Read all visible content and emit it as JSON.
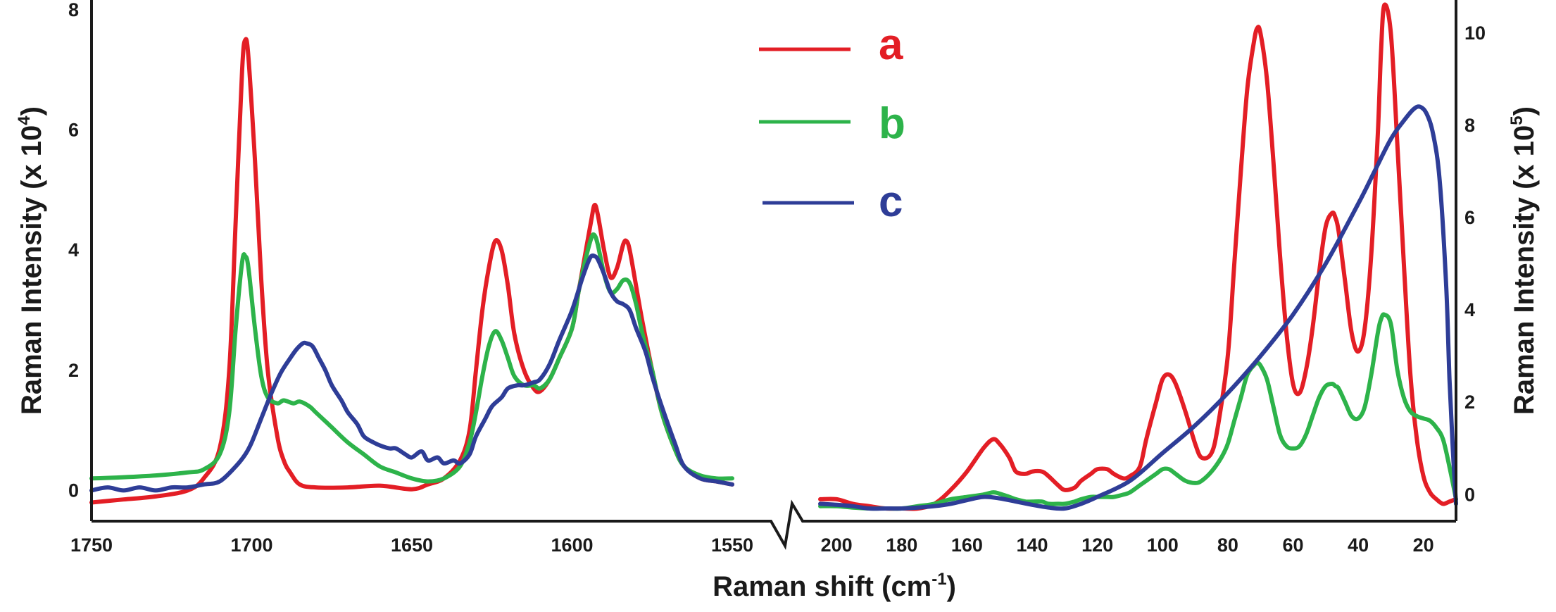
{
  "chart_data": {
    "type": "line",
    "xlabel": "Raman shift (cm-1)",
    "xlabel_main": "Raman shift (cm",
    "xlabel_sup": "-1",
    "xlabel_close": ")",
    "panels": [
      {
        "id": "left",
        "xlim": [
          1750,
          1550
        ],
        "ylim": [
          -0.3,
          8
        ],
        "xticks": [
          1750,
          1700,
          1650,
          1600,
          1550
        ],
        "yticks": [
          0,
          2,
          4,
          6,
          8
        ],
        "ylabel": "Raman Intensity (x 10^4)",
        "ylabel_main": "Raman Intensity (x 10",
        "ylabel_sup": "4",
        "ylabel_close": ")",
        "series": [
          {
            "name": "a",
            "color": "#e31e25",
            "x": [
              1750,
              1740,
              1730,
              1720,
              1715,
              1710,
              1707,
              1705,
              1703,
              1702,
              1701,
              1699,
              1697,
              1695,
              1692,
              1690,
              1688,
              1685,
              1680,
              1670,
              1660,
              1650,
              1645,
              1640,
              1635,
              1632,
              1630,
              1628,
              1626,
              1624,
              1622,
              1620,
              1618,
              1615,
              1612,
              1610,
              1607,
              1604,
              1600,
              1598,
              1596,
              1594,
              1593,
              1592,
              1590,
              1588,
              1586,
              1584,
              1583,
              1582,
              1580,
              1578,
              1575,
              1572,
              1568,
              1565,
              1560,
              1555,
              1550
            ],
            "y": [
              -0.2,
              -0.15,
              -0.1,
              0.0,
              0.2,
              0.7,
              2.0,
              4.5,
              7.0,
              7.5,
              7.2,
              5.5,
              3.5,
              2.0,
              0.9,
              0.5,
              0.3,
              0.1,
              0.05,
              0.05,
              0.08,
              0.02,
              0.1,
              0.2,
              0.5,
              1.0,
              2.0,
              3.0,
              3.7,
              4.15,
              4.0,
              3.4,
              2.6,
              2.0,
              1.7,
              1.65,
              1.85,
              2.2,
              2.7,
              3.3,
              3.9,
              4.5,
              4.75,
              4.6,
              4.0,
              3.55,
              3.7,
              4.1,
              4.15,
              4.0,
              3.4,
              2.8,
              2.0,
              1.3,
              0.7,
              0.4,
              0.2,
              0.15,
              0.1
            ]
          },
          {
            "name": "b",
            "color": "#2db34a",
            "x": [
              1750,
              1740,
              1730,
              1720,
              1715,
              1710,
              1707,
              1705,
              1703,
              1702,
              1701,
              1699,
              1697,
              1695,
              1692,
              1690,
              1687,
              1685,
              1682,
              1680,
              1675,
              1670,
              1665,
              1660,
              1655,
              1650,
              1645,
              1640,
              1635,
              1632,
              1630,
              1628,
              1626,
              1624,
              1622,
              1620,
              1618,
              1615,
              1612,
              1610,
              1607,
              1604,
              1600,
              1598,
              1596,
              1594,
              1593,
              1592,
              1590,
              1588,
              1586,
              1584,
              1582,
              1580,
              1578,
              1575,
              1572,
              1568,
              1565,
              1560,
              1555,
              1550
            ],
            "y": [
              0.2,
              0.22,
              0.25,
              0.3,
              0.35,
              0.6,
              1.3,
              2.7,
              3.8,
              3.9,
              3.7,
              2.7,
              1.9,
              1.55,
              1.45,
              1.5,
              1.45,
              1.48,
              1.4,
              1.3,
              1.05,
              0.8,
              0.6,
              0.4,
              0.3,
              0.2,
              0.15,
              0.2,
              0.4,
              0.8,
              1.3,
              1.9,
              2.4,
              2.65,
              2.5,
              2.2,
              1.9,
              1.75,
              1.75,
              1.7,
              1.85,
              2.2,
              2.7,
              3.3,
              3.8,
              4.2,
              4.25,
              4.1,
              3.6,
              3.3,
              3.35,
              3.5,
              3.45,
              3.1,
              2.6,
              2.0,
              1.3,
              0.7,
              0.4,
              0.25,
              0.2,
              0.2
            ]
          },
          {
            "name": "c",
            "color": "#2e3d97",
            "x": [
              1750,
              1745,
              1740,
              1735,
              1730,
              1725,
              1720,
              1715,
              1710,
              1705,
              1702,
              1700,
              1697,
              1694,
              1691,
              1688,
              1686,
              1684,
              1683,
              1681,
              1679,
              1677,
              1675,
              1672,
              1670,
              1667,
              1665,
              1662,
              1660,
              1657,
              1655,
              1652,
              1650,
              1647,
              1645,
              1642,
              1640,
              1637,
              1635,
              1632,
              1630,
              1627,
              1625,
              1622,
              1620,
              1617,
              1615,
              1612,
              1610,
              1607,
              1604,
              1600,
              1597,
              1595,
              1594,
              1593,
              1592,
              1590,
              1588,
              1586,
              1584,
              1582,
              1580,
              1577,
              1575,
              1572,
              1568,
              1565,
              1560,
              1555,
              1550
            ],
            "y": [
              0.0,
              0.05,
              0.0,
              0.05,
              0.0,
              0.05,
              0.05,
              0.1,
              0.15,
              0.4,
              0.6,
              0.8,
              1.2,
              1.6,
              1.95,
              2.2,
              2.35,
              2.45,
              2.45,
              2.4,
              2.2,
              2.0,
              1.75,
              1.5,
              1.3,
              1.1,
              0.9,
              0.8,
              0.75,
              0.7,
              0.7,
              0.6,
              0.55,
              0.65,
              0.5,
              0.55,
              0.45,
              0.5,
              0.45,
              0.6,
              0.9,
              1.2,
              1.4,
              1.55,
              1.7,
              1.75,
              1.75,
              1.8,
              1.85,
              2.1,
              2.5,
              3.0,
              3.5,
              3.8,
              3.9,
              3.9,
              3.85,
              3.6,
              3.3,
              3.15,
              3.1,
              3.0,
              2.7,
              2.3,
              1.9,
              1.4,
              0.8,
              0.4,
              0.2,
              0.15,
              0.1
            ]
          }
        ]
      },
      {
        "id": "right",
        "xlim": [
          205,
          10
        ],
        "ylim": [
          -0.3,
          10.5
        ],
        "xticks": [
          200,
          180,
          160,
          140,
          120,
          100,
          80,
          60,
          40,
          20
        ],
        "yticks": [
          0,
          2,
          4,
          6,
          8,
          10
        ],
        "ylabel": "Raman Intensity (x 10^5)",
        "ylabel_main": "Raman Intensity (x 10",
        "ylabel_sup": "5",
        "ylabel_close": ")",
        "series": [
          {
            "name": "a",
            "color": "#e31e25",
            "x": [
              205,
              200,
              195,
              190,
              185,
              180,
              175,
              170,
              165,
              160,
              155,
              152,
              150,
              147,
              145,
              142,
              140,
              137,
              135,
              132,
              130,
              127,
              125,
              122,
              120,
              117,
              115,
              112,
              110,
              107,
              105,
              102,
              100,
              98,
              96,
              93,
              90,
              88,
              85,
              83,
              80,
              78,
              76,
              74,
              72,
              71,
              70,
              68,
              66,
              64,
              62,
              60,
              58,
              56,
              54,
              52,
              50,
              48,
              47,
              46,
              44,
              42,
              40,
              38,
              36,
              34,
              33,
              32,
              30,
              28,
              26,
              24,
              22,
              20,
              18,
              16,
              14,
              12,
              10
            ],
            "y": [
              -0.1,
              -0.1,
              -0.2,
              -0.25,
              -0.3,
              -0.3,
              -0.3,
              -0.2,
              0.1,
              0.5,
              1.0,
              1.2,
              1.1,
              0.8,
              0.5,
              0.45,
              0.5,
              0.5,
              0.4,
              0.2,
              0.1,
              0.15,
              0.3,
              0.45,
              0.55,
              0.55,
              0.45,
              0.35,
              0.4,
              0.6,
              1.2,
              2.0,
              2.5,
              2.6,
              2.4,
              1.8,
              1.1,
              0.8,
              0.9,
              1.5,
              3.0,
              5.0,
              7.0,
              8.8,
              9.8,
              10.1,
              10.0,
              9.0,
              7.2,
              5.2,
              3.5,
              2.4,
              2.2,
              2.7,
              3.6,
              4.8,
              5.8,
              6.1,
              6.0,
              5.7,
              4.6,
              3.5,
              3.1,
              3.6,
              5.2,
              7.8,
              9.6,
              10.6,
              10.0,
              7.6,
              5.0,
              2.6,
              1.2,
              0.4,
              0.05,
              -0.1,
              -0.2,
              -0.15,
              -0.1
            ]
          },
          {
            "name": "b",
            "color": "#2db34a",
            "x": [
              205,
              200,
              195,
              190,
              185,
              180,
              175,
              170,
              165,
              160,
              155,
              152,
              150,
              147,
              145,
              142,
              140,
              137,
              135,
              132,
              130,
              127,
              125,
              122,
              120,
              117,
              115,
              112,
              110,
              107,
              105,
              102,
              100,
              98,
              96,
              93,
              90,
              88,
              85,
              82,
              80,
              78,
              76,
              74,
              72,
              71,
              70,
              68,
              66,
              64,
              62,
              60,
              58,
              56,
              54,
              52,
              50,
              48,
              47,
              46,
              44,
              42,
              40,
              38,
              36,
              34,
              33,
              32,
              30,
              28,
              26,
              24,
              22,
              20,
              18,
              16,
              14,
              12,
              10
            ],
            "y": [
              -0.25,
              -0.25,
              -0.28,
              -0.3,
              -0.3,
              -0.3,
              -0.25,
              -0.2,
              -0.1,
              -0.05,
              0.0,
              0.05,
              0.02,
              -0.05,
              -0.1,
              -0.15,
              -0.15,
              -0.15,
              -0.2,
              -0.2,
              -0.2,
              -0.15,
              -0.1,
              -0.05,
              -0.05,
              -0.05,
              -0.05,
              0.0,
              0.05,
              0.2,
              0.3,
              0.45,
              0.55,
              0.55,
              0.45,
              0.3,
              0.25,
              0.3,
              0.5,
              0.8,
              1.1,
              1.6,
              2.1,
              2.6,
              2.8,
              2.85,
              2.8,
              2.5,
              1.9,
              1.3,
              1.05,
              1.0,
              1.05,
              1.3,
              1.7,
              2.1,
              2.35,
              2.4,
              2.35,
              2.3,
              2.0,
              1.7,
              1.65,
              1.9,
              2.6,
              3.5,
              3.8,
              3.9,
              3.7,
              2.7,
              2.1,
              1.8,
              1.7,
              1.65,
              1.6,
              1.45,
              1.2,
              0.6,
              -0.1
            ]
          },
          {
            "name": "c",
            "color": "#2e3d97",
            "x": [
              205,
              200,
              195,
              190,
              185,
              180,
              175,
              170,
              165,
              160,
              155,
              150,
              145,
              140,
              135,
              130,
              125,
              120,
              110,
              100,
              90,
              80,
              70,
              60,
              50,
              40,
              35,
              30,
              26,
              23,
              21,
              19,
              17,
              15,
              13,
              12,
              11,
              10
            ],
            "y": [
              -0.2,
              -0.22,
              -0.25,
              -0.3,
              -0.3,
              -0.3,
              -0.28,
              -0.25,
              -0.2,
              -0.12,
              -0.05,
              -0.08,
              -0.15,
              -0.22,
              -0.28,
              -0.3,
              -0.2,
              -0.05,
              0.3,
              0.9,
              1.5,
              2.2,
              3.0,
              3.9,
              5.0,
              6.3,
              7.0,
              7.7,
              8.1,
              8.35,
              8.4,
              8.25,
              7.8,
              6.8,
              4.5,
              2.5,
              1.0,
              -0.2
            ]
          }
        ]
      }
    ],
    "legend": {
      "placement": "top-center",
      "entries": [
        {
          "label": "a",
          "color": "#e31e25"
        },
        {
          "label": "b",
          "color": "#2db34a"
        },
        {
          "label": "c",
          "color": "#2e3d97"
        }
      ]
    }
  }
}
